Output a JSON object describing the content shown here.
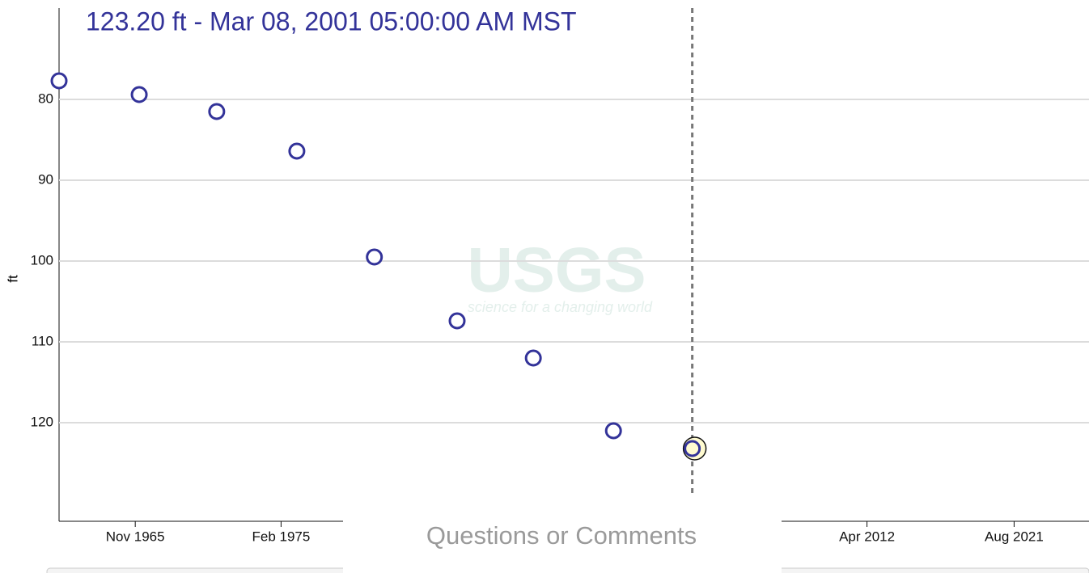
{
  "chart_data": {
    "type": "scatter",
    "title": "123.20 ft - Mar 08, 2001 05:00:00 AM MST",
    "y_label": "ft",
    "x": [
      "1961-01",
      "1966-02",
      "1971-01",
      "1976-02",
      "1981-01",
      "1986-04",
      "1991-02",
      "1996-03",
      "2001-03"
    ],
    "series": [
      {
        "name": "ft",
        "color": "#333399",
        "values": [
          77.7,
          79.4,
          81.5,
          86.4,
          99.5,
          107.4,
          112.0,
          121.0,
          123.2
        ]
      }
    ],
    "xlim": [
      "1961-01",
      "2026-05"
    ],
    "xticks": [
      {
        "value": "1965-11",
        "label": "Nov 1965"
      },
      {
        "value": "1975-02",
        "label": "Feb 1975"
      },
      {
        "value": "2012-04",
        "label": "Apr 2012"
      },
      {
        "value": "2021-08",
        "label": "Aug 2021"
      }
    ],
    "ylim": [
      68.7,
      132.2
    ],
    "yticks": [
      80,
      90,
      100,
      110,
      120
    ],
    "y_inverted": true,
    "grid": true,
    "highlight_index": 8,
    "watermark": {
      "logo": "USGS",
      "tagline": "science for a changing world"
    },
    "footer_link": "Questions or Comments"
  }
}
